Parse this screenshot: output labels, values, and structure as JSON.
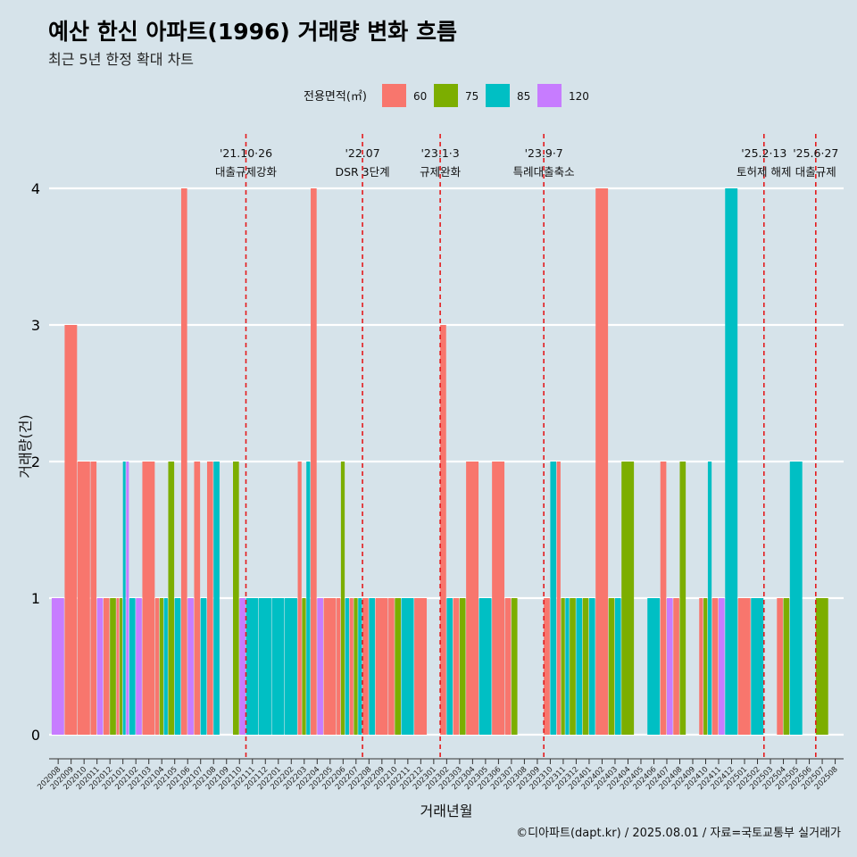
{
  "title": "예산 한신 아파트(1996) 거래량 변화 흐름",
  "subtitle": "최근 5년 한정 확대 차트",
  "caption": "©디아파트(dapt.kr) / 2025.08.01 / 자료=국토교통부 실거래가",
  "colors": {
    "60": "#f8766d",
    "75": "#7cae00",
    "85": "#00bfc4",
    "120": "#c77cff",
    "background": "#d6e3ea",
    "event_line": "#e41a1c"
  },
  "chart_data": {
    "type": "bar",
    "title": "예산 한신 아파트(1996) 거래량 변화 흐름",
    "subtitle": "최근 5년 한정 확대 차트",
    "xlabel": "거래년월",
    "ylabel": "거래량(건)",
    "ylim": [
      0,
      4
    ],
    "yticks": [
      0,
      1,
      2,
      3,
      4
    ],
    "grid": true,
    "legend": {
      "title": "전용면적(㎡)",
      "position": "top",
      "entries": [
        "60",
        "75",
        "85",
        "120"
      ]
    },
    "categories": [
      "202008",
      "202009",
      "202010",
      "202011",
      "202012",
      "202101",
      "202102",
      "202103",
      "202104",
      "202105",
      "202106",
      "202107",
      "202108",
      "202109",
      "202110",
      "202111",
      "202112",
      "202201",
      "202202",
      "202203",
      "202204",
      "202205",
      "202206",
      "202207",
      "202208",
      "202209",
      "202210",
      "202211",
      "202212",
      "202301",
      "202302",
      "202303",
      "202304",
      "202305",
      "202306",
      "202307",
      "202308",
      "202309",
      "202310",
      "202311",
      "202312",
      "202401",
      "202402",
      "202403",
      "202404",
      "202405",
      "202406",
      "202407",
      "202408",
      "202409",
      "202410",
      "202411",
      "202412",
      "202501",
      "202502",
      "202503",
      "202504",
      "202505",
      "202506",
      "202507",
      "202508"
    ],
    "series": [
      {
        "name": "60",
        "values": [
          0,
          3,
          2,
          2,
          1,
          1,
          0,
          2,
          1,
          0,
          4,
          2,
          2,
          0,
          0,
          0,
          0,
          0,
          0,
          2,
          4,
          1,
          1,
          1,
          1,
          1,
          1,
          0,
          1,
          0,
          3,
          1,
          2,
          0,
          2,
          1,
          0,
          0,
          1,
          2,
          0,
          0,
          4,
          0,
          0,
          0,
          0,
          2,
          1,
          0,
          1,
          1,
          0,
          1,
          0,
          0,
          1,
          0,
          0,
          0,
          0
        ]
      },
      {
        "name": "75",
        "values": [
          0,
          0,
          0,
          0,
          1,
          1,
          0,
          0,
          1,
          2,
          0,
          0,
          0,
          0,
          2,
          0,
          0,
          0,
          0,
          1,
          0,
          0,
          2,
          1,
          0,
          0,
          1,
          0,
          0,
          0,
          0,
          1,
          0,
          0,
          0,
          1,
          0,
          0,
          0,
          1,
          1,
          1,
          0,
          1,
          2,
          0,
          0,
          0,
          2,
          0,
          1,
          0,
          0,
          0,
          0,
          0,
          1,
          0,
          0,
          1,
          0
        ]
      },
      {
        "name": "85",
        "values": [
          0,
          0,
          0,
          0,
          0,
          2,
          1,
          0,
          1,
          1,
          0,
          1,
          2,
          0,
          0,
          1,
          1,
          1,
          1,
          2,
          0,
          0,
          1,
          1,
          1,
          0,
          0,
          1,
          0,
          0,
          1,
          0,
          0,
          1,
          0,
          0,
          0,
          0,
          2,
          1,
          1,
          1,
          0,
          1,
          0,
          0,
          1,
          0,
          0,
          0,
          2,
          0,
          4,
          0,
          1,
          0,
          0,
          2,
          0,
          0,
          0
        ]
      },
      {
        "name": "120",
        "values": [
          1,
          0,
          0,
          1,
          0,
          2,
          1,
          0,
          0,
          0,
          1,
          0,
          0,
          0,
          1,
          0,
          0,
          0,
          0,
          0,
          1,
          0,
          0,
          0,
          0,
          0,
          0,
          0,
          0,
          0,
          0,
          0,
          0,
          0,
          0,
          0,
          0,
          0,
          0,
          0,
          0,
          0,
          0,
          0,
          0,
          0,
          0,
          1,
          0,
          0,
          0,
          1,
          0,
          0,
          0,
          0,
          0,
          0,
          0,
          0,
          0
        ]
      }
    ],
    "events": [
      {
        "after": "202110",
        "date": "'21.10·26",
        "label": "대출규제강화"
      },
      {
        "after": "202207",
        "date": "'22.07",
        "label": "DSR 3단계"
      },
      {
        "after": "202301",
        "date": "'23.1·3",
        "label": "규제완화"
      },
      {
        "after": "202309",
        "date": "'23.9·7",
        "label": "특례대출축소"
      },
      {
        "after": "202502",
        "date": "'25.2·13",
        "label": "토허제 해제"
      },
      {
        "after": "202506",
        "date": "'25.6·27",
        "label": "대출규제"
      }
    ]
  }
}
